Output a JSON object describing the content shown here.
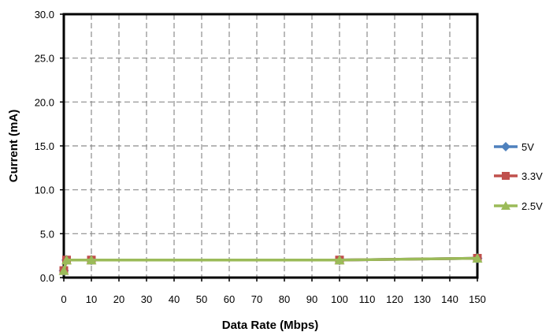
{
  "chart_data": {
    "type": "line",
    "title": "",
    "xlabel": "Data Rate (Mbps)",
    "ylabel": "Current (mA)",
    "xlim": [
      0,
      150
    ],
    "ylim": [
      0,
      30
    ],
    "xticks": [
      "0",
      "10",
      "20",
      "30",
      "40",
      "50",
      "60",
      "70",
      "80",
      "90",
      "100",
      "110",
      "120",
      "130",
      "140",
      "150"
    ],
    "yticks": [
      "0.0",
      "5.0",
      "10.0",
      "15.0",
      "20.0",
      "25.0",
      "30.0"
    ],
    "grid": true,
    "legend_position": "right",
    "series": [
      {
        "name": "5V",
        "color": "#4F81BD",
        "marker": "diamond",
        "points": [
          {
            "x": 0,
            "y": 0.8
          },
          {
            "x": 1,
            "y": 2.0
          },
          {
            "x": 10,
            "y": 2.0
          },
          {
            "x": 100,
            "y": 2.0
          },
          {
            "x": 150,
            "y": 2.2
          }
        ]
      },
      {
        "name": "3.3V",
        "color": "#C0504D",
        "marker": "square",
        "points": [
          {
            "x": 0,
            "y": 0.8
          },
          {
            "x": 1,
            "y": 2.0
          },
          {
            "x": 10,
            "y": 2.0
          },
          {
            "x": 100,
            "y": 2.0
          },
          {
            "x": 150,
            "y": 2.2
          }
        ]
      },
      {
        "name": "2.5V",
        "color": "#9BBB59",
        "marker": "triangle",
        "points": [
          {
            "x": 0,
            "y": 0.8
          },
          {
            "x": 1,
            "y": 2.0
          },
          {
            "x": 10,
            "y": 2.0
          },
          {
            "x": 100,
            "y": 2.0
          },
          {
            "x": 150,
            "y": 2.2
          }
        ]
      }
    ]
  }
}
